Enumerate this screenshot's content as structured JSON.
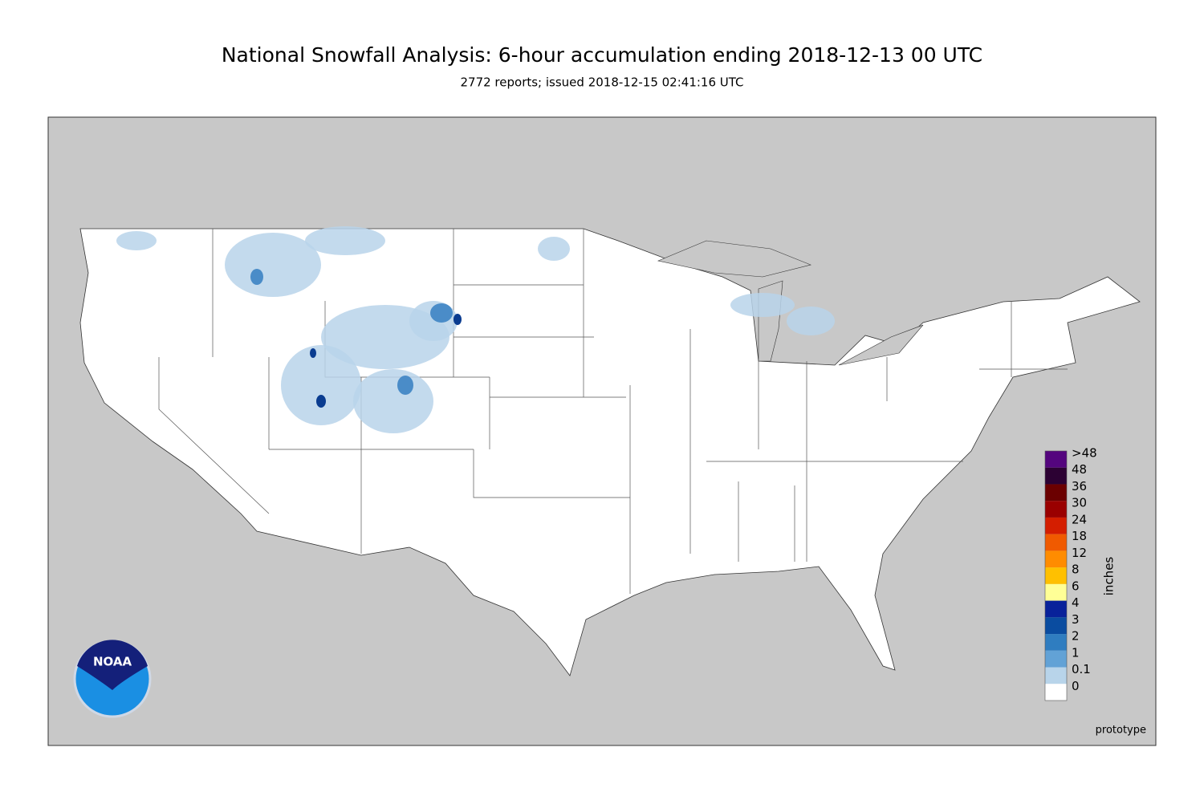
{
  "title": "National Snowfall Analysis: 6-hour accumulation ending 2018-12-13 00 UTC",
  "subtitle": "2772 reports; issued 2018-12-15 02:41:16 UTC",
  "logo_text": "NOAA",
  "footer_note": "prototype",
  "legend": {
    "unit_label": "inches",
    "items": [
      {
        "label": ">48",
        "color": "#54057e"
      },
      {
        "label": "48",
        "color": "#2c0133"
      },
      {
        "label": "36",
        "color": "#6b0000"
      },
      {
        "label": "30",
        "color": "#9a0000"
      },
      {
        "label": "24",
        "color": "#d41e00"
      },
      {
        "label": "18",
        "color": "#f05a00"
      },
      {
        "label": "12",
        "color": "#ff8c00"
      },
      {
        "label": "8",
        "color": "#ffc000"
      },
      {
        "label": "6",
        "color": "#ffff96"
      },
      {
        "label": "4",
        "color": "#08219a"
      },
      {
        "label": "3",
        "color": "#0a4ca0"
      },
      {
        "label": "2",
        "color": "#2f7dc0"
      },
      {
        "label": "1",
        "color": "#62a2d6"
      },
      {
        "label": "0.1",
        "color": "#b8d4ea"
      },
      {
        "label": "0",
        "color": "#e4eef8"
      }
    ]
  }
}
